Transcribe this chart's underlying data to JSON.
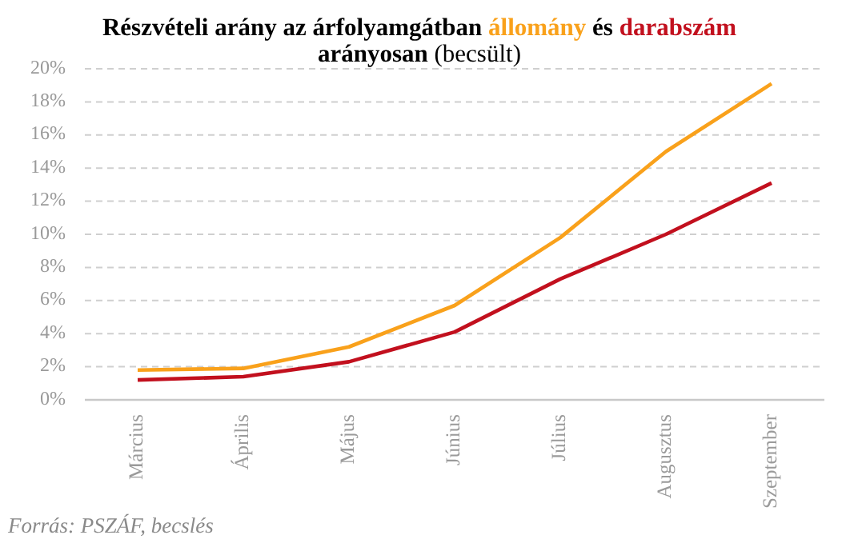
{
  "chart_data": {
    "type": "line",
    "title": "Részvételi arány az árfolyamgátban",
    "subtitle": "arányosan (becsült)",
    "categories": [
      "Március",
      "Április",
      "Május",
      "Június",
      "Július",
      "Augusztus",
      "Szeptember"
    ],
    "series": [
      {
        "name": "állomány",
        "color": "#f9a11b",
        "values": [
          1.8,
          1.9,
          3.2,
          5.7,
          9.8,
          15.0,
          19.1
        ]
      },
      {
        "name": "darabszám",
        "color": "#c2101e",
        "values": [
          1.2,
          1.4,
          2.3,
          4.1,
          7.3,
          10.0,
          13.1
        ]
      }
    ],
    "ylim": [
      0,
      20
    ],
    "yticks": [
      {
        "value": 0,
        "label": "0%"
      },
      {
        "value": 2,
        "label": "2%"
      },
      {
        "value": 4,
        "label": "4%"
      },
      {
        "value": 6,
        "label": "6%"
      },
      {
        "value": 8,
        "label": "8%"
      },
      {
        "value": 10,
        "label": "10%"
      },
      {
        "value": 12,
        "label": "12%"
      },
      {
        "value": 14,
        "label": "14%"
      },
      {
        "value": 16,
        "label": "16%"
      },
      {
        "value": 18,
        "label": "18%"
      },
      {
        "value": 20,
        "label": "20%"
      }
    ],
    "grid": "y",
    "legend": "top",
    "line_style": "solid",
    "annotations": [
      "és",
      "Forrás: PSZÁF, becslés"
    ]
  }
}
